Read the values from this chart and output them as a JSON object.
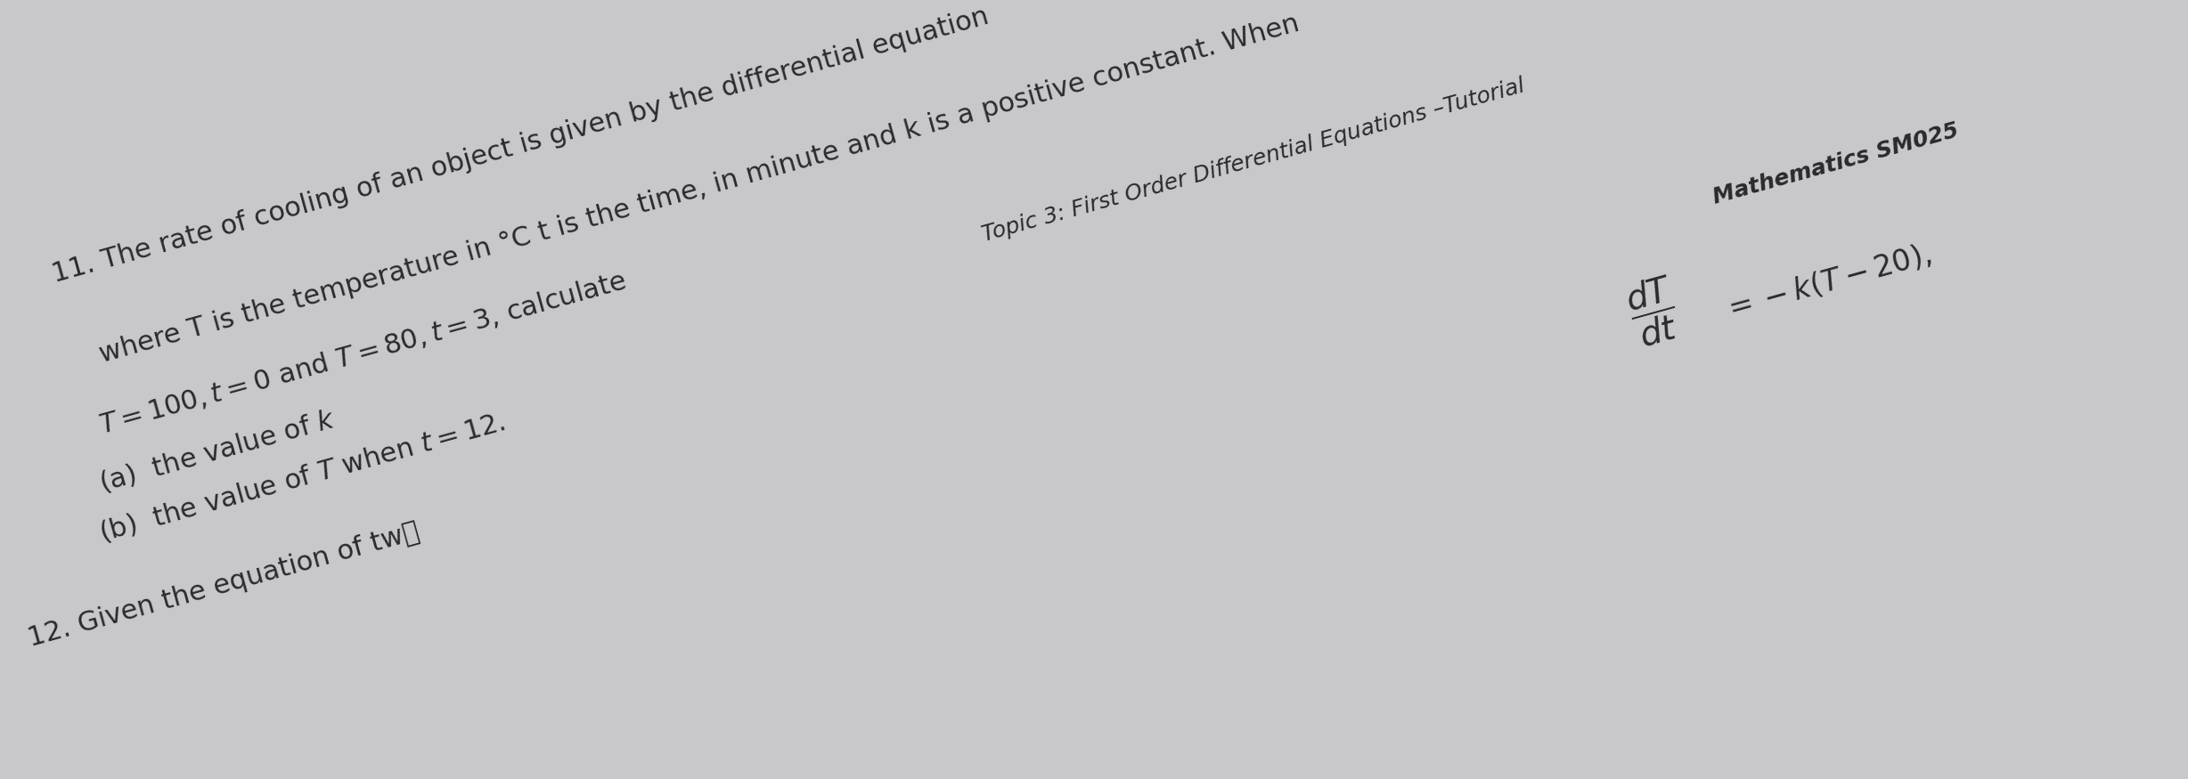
{
  "bg_color": "#c8c8cc",
  "page_color": "#e2e2e6",
  "rotation_deg": 15.5,
  "header_topic": "Topic 3: First Order Differential Equations –Tutorial",
  "header_math": "Mathematics SM025",
  "header_fontsize": 18,
  "item11_full": "11. The rate of cooling of an object is given by the differential equation",
  "item11_equation_num": "$\\dfrac{dT}{dt}$",
  "item11_equation_rhs": "$= -k(T-20),$",
  "item11_line2": "where T is the temperature in °C t is the time, in minute and k is a positive constant. When",
  "item11_line3": "$T=100, t=0$ and $T=80, t=3$, calculate",
  "item11_a": "(a)  the value of $k$",
  "item11_b": "(b)  the value of $T$ when $t=12$.",
  "item12_text": "12. Given the equation of tw๏",
  "text_color": "#2a2a2e",
  "fontsize_main": 22,
  "fontsize_eq": 24
}
